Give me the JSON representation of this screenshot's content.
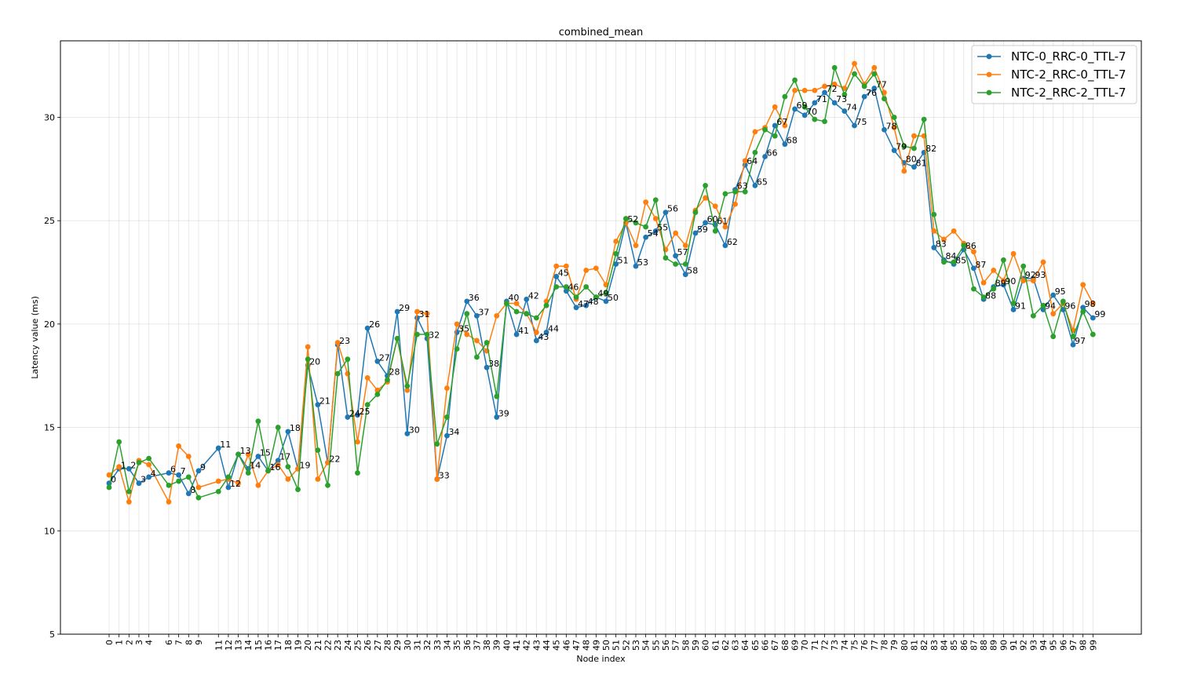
{
  "chart_data": {
    "type": "line",
    "title": "combined_mean",
    "xlabel": "Node index",
    "ylabel": "Latency value (ms)",
    "ylim": [
      5,
      33.7
    ],
    "yticks": [
      5,
      10,
      15,
      20,
      25,
      30
    ],
    "grid": true,
    "legend_position": "top-right",
    "x": [
      0,
      1,
      2,
      3,
      4,
      6,
      7,
      8,
      9,
      11,
      12,
      13,
      14,
      15,
      16,
      17,
      18,
      19,
      20,
      21,
      22,
      23,
      24,
      25,
      26,
      27,
      28,
      29,
      30,
      31,
      32,
      33,
      34,
      35,
      36,
      37,
      38,
      39,
      40,
      41,
      42,
      43,
      44,
      45,
      46,
      47,
      48,
      49,
      50,
      51,
      52,
      53,
      54,
      55,
      56,
      57,
      58,
      59,
      60,
      61,
      62,
      63,
      64,
      65,
      66,
      67,
      68,
      69,
      70,
      71,
      72,
      73,
      74,
      75,
      76,
      77,
      78,
      79,
      80,
      81,
      82,
      83,
      84,
      85,
      86,
      87,
      88,
      89,
      90,
      91,
      92,
      93,
      94,
      95,
      96,
      97,
      98,
      99
    ],
    "point_labels": [
      "0",
      "1",
      "2",
      "3",
      "4",
      "6",
      "7",
      "8",
      "9",
      "11",
      "12",
      "13",
      "14",
      "15",
      "16",
      "17",
      "18",
      "19",
      "20",
      "21",
      "22",
      "23",
      "24",
      "25",
      "26",
      "27",
      "28",
      "29",
      "30",
      "31",
      "32",
      "33",
      "34",
      "35",
      "36",
      "37",
      "38",
      "39",
      "40",
      "41",
      "42",
      "43",
      "44",
      "45",
      "46",
      "47",
      "48",
      "49",
      "50",
      "51",
      "52",
      "53",
      "54",
      "55",
      "56",
      "57",
      "58",
      "59",
      "60",
      "61",
      "62",
      "63",
      "64",
      "65",
      "66",
      "67",
      "68",
      "69",
      "70",
      "71",
      "72",
      "73",
      "74",
      "75",
      "76",
      "77",
      "78",
      "79",
      "80",
      "81",
      "82",
      "83",
      "84",
      "85",
      "86",
      "87",
      "88",
      "89",
      "90",
      "91",
      "92",
      "93",
      "94",
      "95",
      "96",
      "97",
      "98",
      "99"
    ],
    "series": [
      {
        "name": "NTC-0_RRC-0_TTL-7",
        "color": "#1f77b4",
        "values": [
          12.3,
          13.0,
          13.0,
          12.3,
          12.6,
          12.8,
          12.7,
          11.8,
          12.9,
          14.0,
          12.1,
          13.7,
          13.0,
          13.6,
          12.9,
          13.4,
          14.8,
          13.0,
          18.0,
          16.1,
          13.3,
          19.0,
          15.5,
          15.6,
          19.8,
          18.2,
          17.5,
          20.6,
          14.7,
          20.3,
          19.3,
          12.5,
          14.6,
          19.6,
          21.1,
          20.4,
          17.9,
          15.5,
          21.1,
          19.5,
          21.2,
          19.2,
          19.6,
          22.3,
          21.6,
          20.8,
          20.9,
          21.3,
          21.1,
          22.9,
          24.9,
          22.8,
          24.2,
          24.5,
          25.4,
          23.3,
          22.4,
          24.4,
          24.9,
          24.8,
          23.8,
          26.5,
          27.7,
          26.7,
          28.1,
          29.6,
          28.7,
          30.4,
          30.1,
          30.7,
          31.2,
          30.7,
          30.3,
          29.6,
          31.0,
          31.4,
          29.4,
          28.4,
          27.8,
          27.6,
          28.3,
          23.7,
          23.1,
          22.9,
          23.6,
          22.7,
          21.2,
          21.8,
          21.9,
          20.7,
          22.2,
          22.2,
          20.7,
          21.4,
          20.7,
          19.0,
          20.8,
          20.3
        ]
      },
      {
        "name": "NTC-2_RRC-0_TTL-7",
        "color": "#ff7f0e",
        "values": [
          12.7,
          13.1,
          11.4,
          13.4,
          13.2,
          11.4,
          14.1,
          13.6,
          12.1,
          12.4,
          12.5,
          12.3,
          13.7,
          12.2,
          12.9,
          13.2,
          12.5,
          13.0,
          18.9,
          12.5,
          13.3,
          19.1,
          17.6,
          14.3,
          17.4,
          16.8,
          17.2,
          19.3,
          16.8,
          20.6,
          20.5,
          12.5,
          16.9,
          20.0,
          19.5,
          19.2,
          18.7,
          20.4,
          21.0,
          21.0,
          20.5,
          19.6,
          21.1,
          22.8,
          22.8,
          21.2,
          22.6,
          22.7,
          21.9,
          24.0,
          24.9,
          23.8,
          25.9,
          25.1,
          23.6,
          24.4,
          23.8,
          25.5,
          26.1,
          25.7,
          24.7,
          25.8,
          27.9,
          29.3,
          29.5,
          30.5,
          29.6,
          31.3,
          31.3,
          31.3,
          31.5,
          31.6,
          31.4,
          32.6,
          31.6,
          32.4,
          31.2,
          29.5,
          27.4,
          29.1,
          29.1,
          24.5,
          24.1,
          24.5,
          23.9,
          23.5,
          22.0,
          22.6,
          22.1,
          23.4,
          22.1,
          22.1,
          23.0,
          20.5,
          21.0,
          19.7,
          21.9,
          21.0
        ]
      },
      {
        "name": "NTC-2_RRC-2_TTL-7",
        "color": "#2ca02c",
        "values": [
          12.1,
          14.3,
          11.9,
          13.3,
          13.5,
          12.2,
          12.4,
          12.6,
          11.6,
          11.9,
          12.6,
          13.7,
          12.8,
          15.3,
          12.9,
          15.0,
          13.1,
          12.0,
          18.3,
          13.9,
          12.2,
          17.6,
          18.3,
          12.8,
          16.1,
          16.6,
          17.3,
          19.3,
          17.0,
          19.5,
          19.5,
          14.2,
          15.5,
          18.8,
          20.5,
          18.4,
          19.1,
          16.5,
          21.0,
          20.6,
          20.5,
          20.3,
          20.9,
          21.8,
          21.8,
          21.3,
          21.8,
          21.3,
          21.5,
          23.4,
          25.1,
          24.9,
          24.7,
          26.0,
          23.2,
          22.9,
          22.9,
          25.4,
          26.7,
          24.5,
          26.3,
          26.4,
          26.4,
          28.3,
          29.4,
          29.1,
          31.0,
          31.8,
          30.5,
          29.9,
          29.8,
          32.4,
          31.1,
          32.1,
          31.5,
          32.1,
          30.9,
          30.0,
          28.6,
          28.5,
          29.9,
          25.3,
          23.0,
          23.0,
          23.8,
          21.7,
          21.3,
          21.7,
          23.1,
          21.0,
          22.8,
          20.4,
          20.9,
          19.4,
          21.1,
          19.4,
          20.6,
          19.5
        ]
      }
    ]
  }
}
